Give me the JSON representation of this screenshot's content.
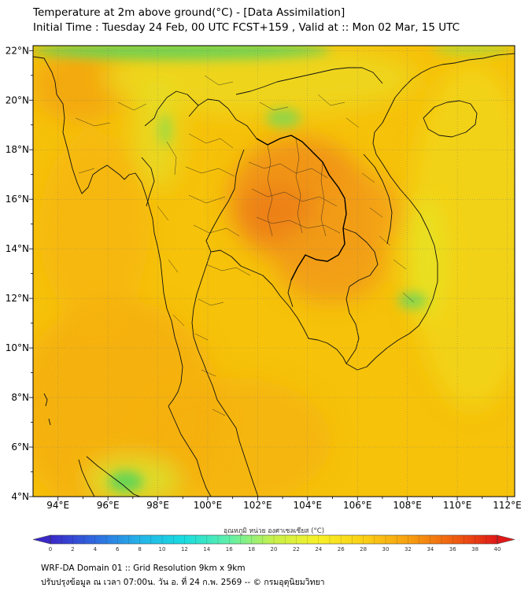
{
  "header": {
    "title_line1": "Temperature at 2m above ground(°C) - [Data Assimilation]",
    "title_line2": "Initial Time : Tuesday 24 Feb, 00 UTC FCST+159 , Valid at :: Mon 02 Mar, 15 UTC"
  },
  "map": {
    "lon_labels": [
      "94°E",
      "96°E",
      "98°E",
      "100°E",
      "102°E",
      "104°E",
      "106°E",
      "108°E",
      "110°E",
      "112°E"
    ],
    "lat_labels": [
      "22°N",
      "20°N",
      "18°N",
      "16°N",
      "14°N",
      "12°N",
      "10°N",
      "8°N",
      "6°N",
      "4°N"
    ],
    "lon_range": [
      93,
      112.3
    ],
    "lat_range": [
      4,
      22.2
    ],
    "field_colors": {
      "base": "#f6c20a",
      "warm": "#f7a910",
      "hot": "#f08a17",
      "cool": "#e2ea2a",
      "cold": "#55d35a"
    }
  },
  "colorbar": {
    "title": "อุณหภูมิ หน่วย องศาเซลเซียส (°C)",
    "min": 0,
    "max": 40,
    "tick_labels": [
      "0",
      "2",
      "4",
      "6",
      "8",
      "10",
      "12",
      "14",
      "16",
      "18",
      "20",
      "22",
      "24",
      "26",
      "28",
      "30",
      "32",
      "34",
      "36",
      "38",
      "40"
    ],
    "colors": [
      "#3a28c8",
      "#2f6ae0",
      "#24b4e8",
      "#18dce0",
      "#5ff0a8",
      "#c8f04a",
      "#f8f028",
      "#fbd016",
      "#f7a010",
      "#f06010",
      "#e01818"
    ]
  },
  "footer": {
    "line1": "WRF-DA Domain 01 :: Grid Resolution 9km x 9km",
    "line2": "ปรับปรุงข้อมูล ณ เวลา 07:00น. วัน อ. ที่ 24 ก.พ. 2569 -- © กรมอุตุนิยมวิทยา"
  }
}
